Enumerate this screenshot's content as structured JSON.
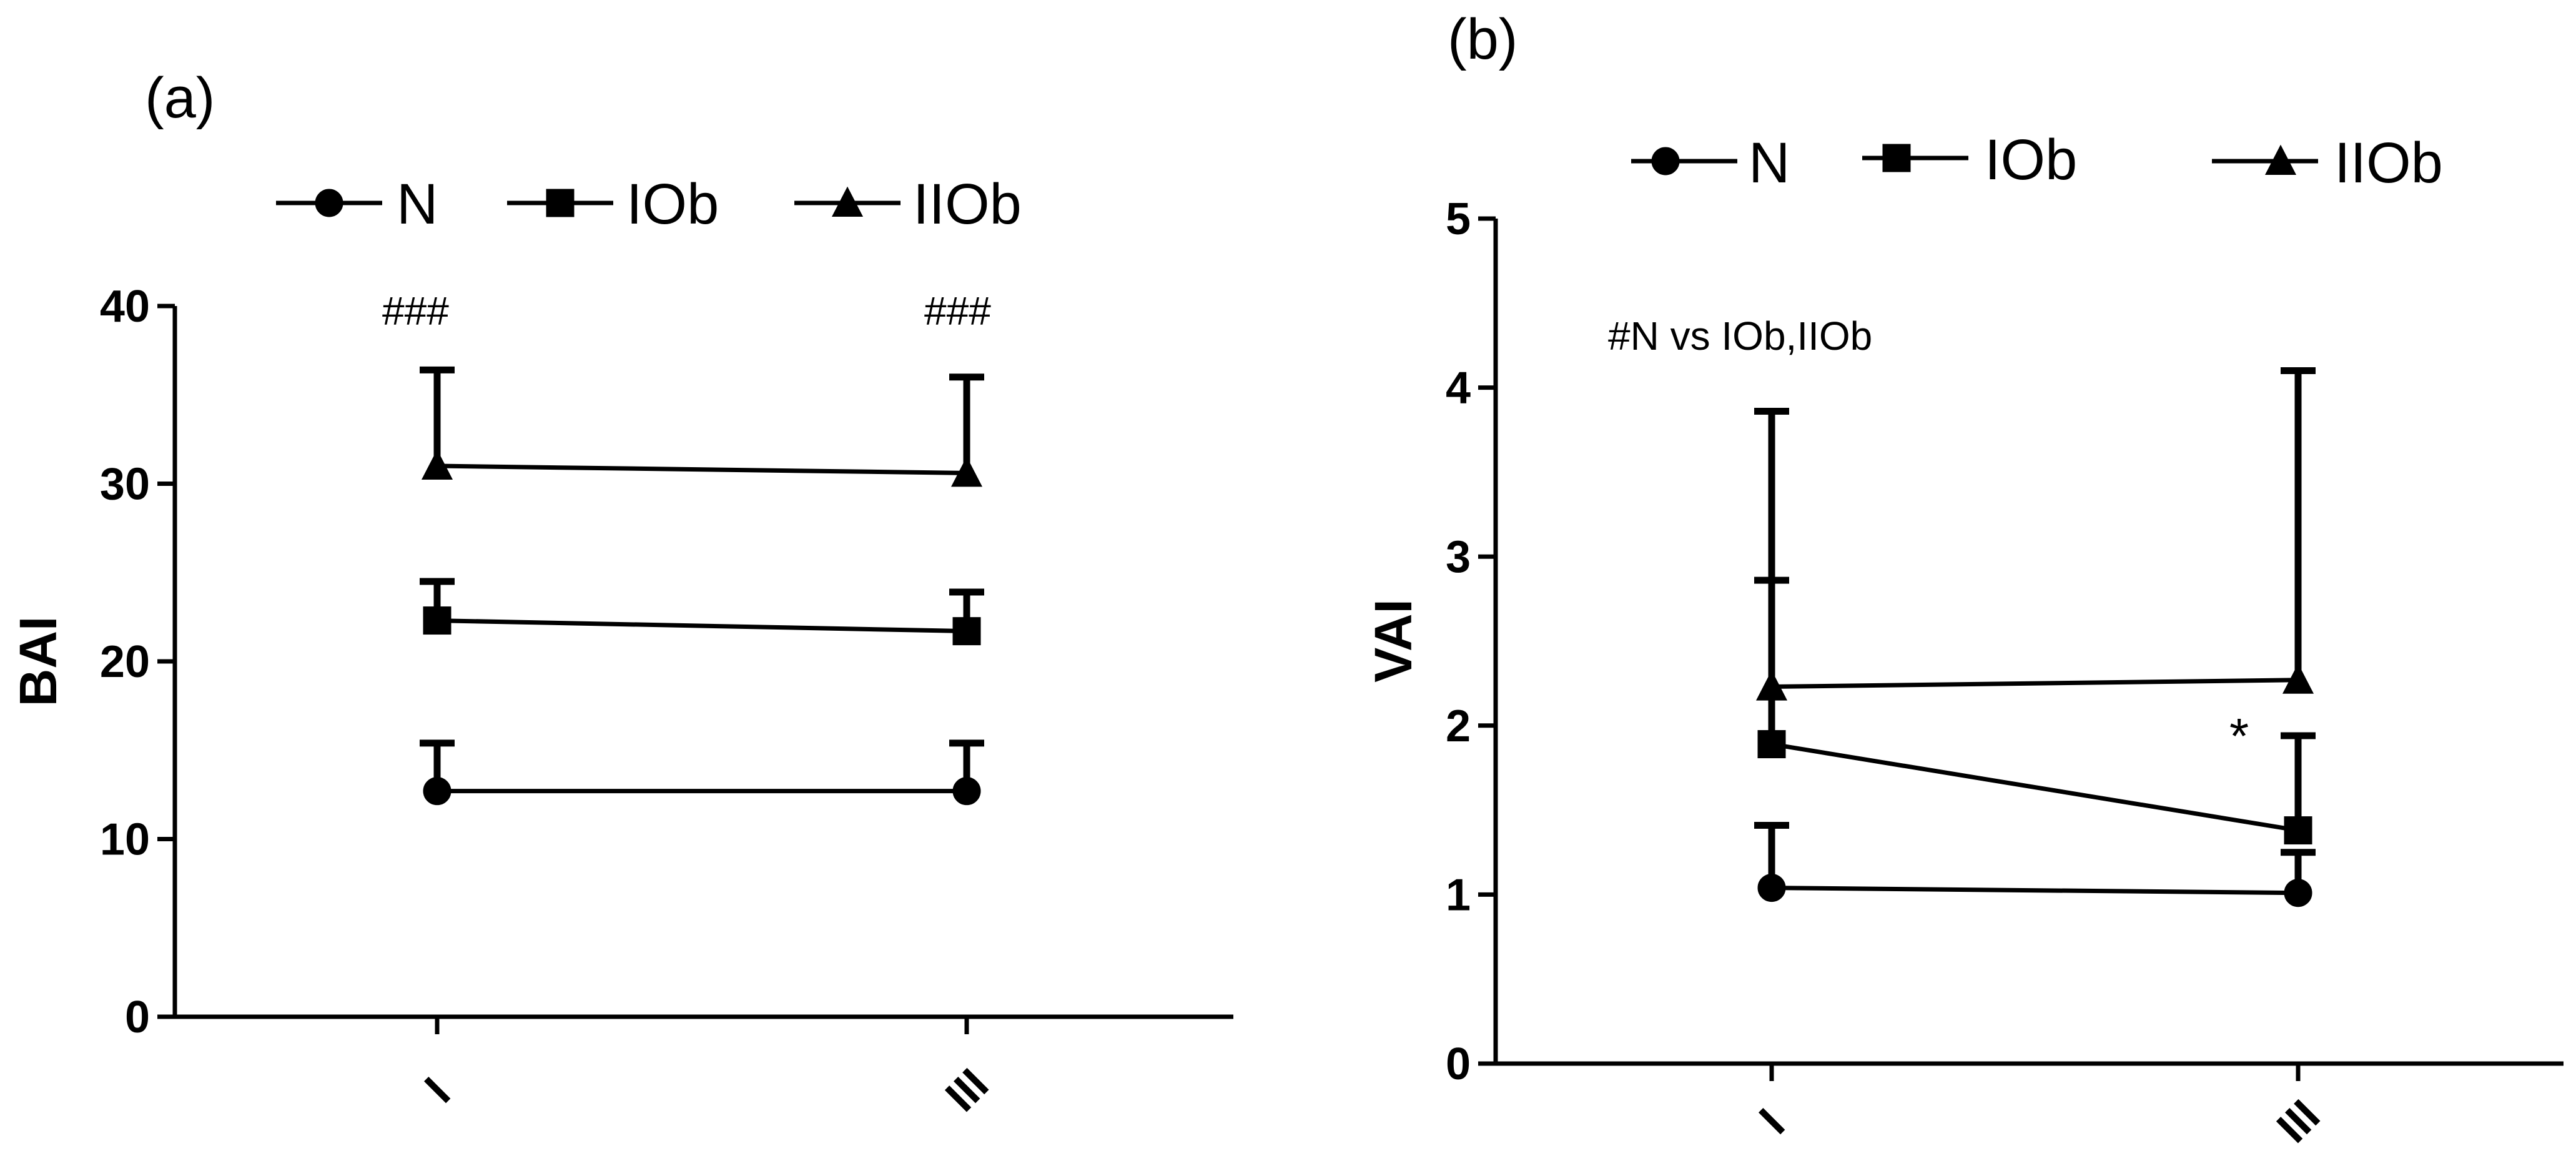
{
  "chart_data": [
    {
      "type": "line",
      "panel_label": "(a)",
      "title": "",
      "xlabel": "",
      "ylabel": "BAI",
      "categories": [
        "I",
        "III"
      ],
      "ylim": [
        0,
        40
      ],
      "yticks": [
        "0",
        "10",
        "20",
        "30",
        "40"
      ],
      "legend_position": "top",
      "series": [
        {
          "name": "N",
          "marker": "circle",
          "values": [
            12.7,
            12.7
          ],
          "error_upper": [
            15.4,
            15.4
          ]
        },
        {
          "name": "IOb",
          "marker": "square",
          "values": [
            22.3,
            21.7
          ],
          "error_upper": [
            24.5,
            23.9
          ]
        },
        {
          "name": "IIOb",
          "marker": "triangle",
          "values": [
            31.0,
            30.6
          ],
          "error_upper": [
            36.4,
            36.0
          ]
        }
      ],
      "annotations": [
        {
          "text": "###",
          "category": "I"
        },
        {
          "text": "###",
          "category": "III"
        }
      ]
    },
    {
      "type": "line",
      "panel_label": "(b)",
      "title": "",
      "xlabel": "",
      "ylabel": "VAI",
      "categories": [
        "I",
        "III"
      ],
      "ylim": [
        0,
        5
      ],
      "yticks": [
        "0",
        "1",
        "2",
        "3",
        "4",
        "5"
      ],
      "legend_position": "top",
      "series": [
        {
          "name": "N",
          "marker": "circle",
          "values": [
            1.04,
            1.01
          ],
          "error_upper": [
            1.41,
            1.25
          ]
        },
        {
          "name": "IOb",
          "marker": "square",
          "values": [
            1.89,
            1.38
          ],
          "error_upper": [
            2.86,
            1.94
          ]
        },
        {
          "name": "IIOb",
          "marker": "triangle",
          "values": [
            2.23,
            2.27
          ],
          "error_upper": [
            3.86,
            4.1
          ]
        }
      ],
      "annotations": [
        {
          "text": "#N vs IOb,IIOb",
          "category": "I"
        },
        {
          "text": "*",
          "category": "III"
        }
      ]
    }
  ]
}
